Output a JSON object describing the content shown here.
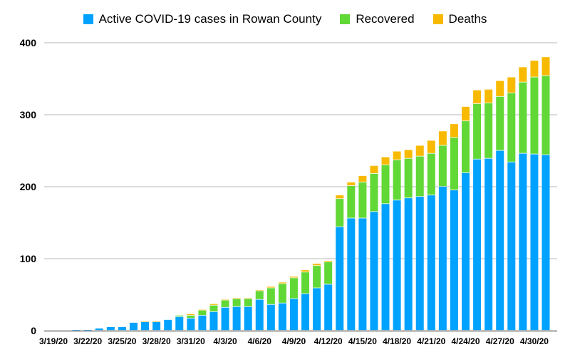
{
  "chart_data": {
    "type": "bar",
    "stacked": true,
    "title": "",
    "xlabel": "",
    "ylabel": "",
    "ylim": [
      0,
      400
    ],
    "yticks": [
      0,
      100,
      200,
      300,
      400
    ],
    "grid": true,
    "legend_position": "top-center",
    "categories": [
      "3/19/20",
      "3/20/20",
      "3/21/20",
      "3/22/20",
      "3/23/20",
      "3/24/20",
      "3/25/20",
      "3/26/20",
      "3/27/20",
      "3/28/20",
      "3/29/20",
      "3/30/20",
      "3/31/20",
      "4/1/20",
      "4/2/20",
      "4/3/20",
      "4/4/20",
      "4/5/20",
      "4/6/20",
      "4/7/20",
      "4/8/20",
      "4/9/20",
      "4/10/20",
      "4/11/20",
      "4/12/20",
      "4/13/20",
      "4/14/20",
      "4/15/20",
      "4/16/20",
      "4/17/20",
      "4/18/20",
      "4/19/20",
      "4/20/20",
      "4/21/20",
      "4/22/20",
      "4/23/20",
      "4/24/20",
      "4/25/20",
      "4/26/20",
      "4/27/20",
      "4/28/20",
      "4/29/20",
      "4/30/20",
      "5/1/20"
    ],
    "xtick_labels": [
      "3/19/20",
      "3/22/20",
      "3/25/20",
      "3/28/20",
      "3/31/20",
      "4/3/20",
      "4/6/20",
      "4/9/20",
      "4/12/20",
      "4/15/20",
      "4/18/20",
      "4/21/20",
      "4/24/20",
      "4/27/20",
      "4/30/20"
    ],
    "series": [
      {
        "name": "Active COVID-19 cases in Rowan County",
        "color": "#00A2FF",
        "values": [
          0,
          0,
          1,
          1,
          3,
          5,
          5,
          11,
          12,
          12,
          15,
          19,
          17,
          21,
          26,
          32,
          33,
          33,
          43,
          36,
          38,
          44,
          51,
          59,
          64,
          144,
          156,
          156,
          165,
          176,
          181,
          184,
          186,
          188,
          200,
          195,
          219,
          238,
          239,
          250,
          234,
          246,
          245,
          244
        ]
      },
      {
        "name": "Recovered",
        "color": "#61D836",
        "values": [
          0,
          0,
          0,
          0,
          0,
          0,
          0,
          0,
          0,
          0,
          0,
          2,
          4,
          7,
          9,
          10,
          11,
          11,
          12,
          23,
          27,
          29,
          30,
          31,
          31,
          39,
          45,
          50,
          53,
          54,
          56,
          55,
          56,
          58,
          57,
          73,
          72,
          77,
          77,
          75,
          96,
          99,
          107,
          110
        ]
      },
      {
        "name": "Deaths",
        "color": "#F8BA00",
        "values": [
          0,
          0,
          0,
          0,
          0,
          0,
          0,
          0,
          1,
          1,
          0,
          0,
          2,
          1,
          2,
          1,
          1,
          1,
          1,
          2,
          2,
          2,
          3,
          3,
          2,
          5,
          5,
          9,
          11,
          11,
          12,
          12,
          15,
          18,
          20,
          19,
          20,
          19,
          19,
          22,
          22,
          21,
          23,
          26
        ]
      }
    ]
  }
}
